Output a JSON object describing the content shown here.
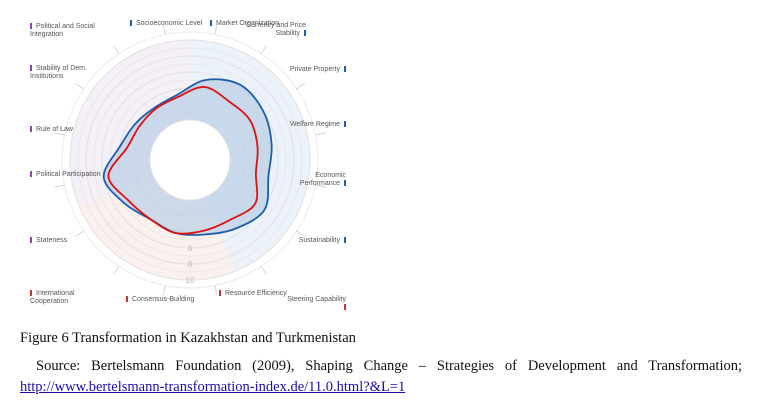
{
  "chart_data": {
    "type": "radar",
    "title": "Transformation in Kazakhstan and Turkmenistan",
    "axes": [
      {
        "label": "Socioeconomic Level",
        "color": "#1f5fa8"
      },
      {
        "label": "Market Organization",
        "color": "#1f5fa8"
      },
      {
        "label": "Currency and Price Stability",
        "color": "#1f5fa8"
      },
      {
        "label": "Private Property",
        "color": "#1f5fa8"
      },
      {
        "label": "Welfare Regime",
        "color": "#1f5fa8"
      },
      {
        "label": "Economic Performance",
        "color": "#1f5fa8"
      },
      {
        "label": "Sustainability",
        "color": "#1f5fa8"
      },
      {
        "label": "Steering Capability",
        "color": "#c0392b"
      },
      {
        "label": "Resource Efficiency",
        "color": "#c0392b"
      },
      {
        "label": "Consensus-Building",
        "color": "#c0392b"
      },
      {
        "label": "International Cooperation",
        "color": "#c0392b"
      },
      {
        "label": "Stateness",
        "color": "#8e44ad"
      },
      {
        "label": "Political Participation",
        "color": "#8e44ad"
      },
      {
        "label": "Rule of Law",
        "color": "#8e44ad"
      },
      {
        "label": "Stability of Dem. Institutions",
        "color": "#8e44ad"
      },
      {
        "label": "Political and Social Integration",
        "color": "#8e44ad"
      }
    ],
    "scale_ticks": [
      "6",
      "8",
      "10"
    ],
    "range": [
      0,
      10
    ],
    "series": [
      {
        "name": "Kazakhstan",
        "color": "#1f5fa8",
        "values": [
          5.2,
          6.3,
          6.0,
          5.4,
          5.0,
          6.2,
          5.3,
          4.5,
          4.3,
          3.9,
          4.8,
          6.0,
          3.9,
          3.2,
          2.9,
          3.3
        ]
      },
      {
        "name": "Turkmenistan",
        "color": "#dd1111",
        "values": [
          4.3,
          3.8,
          4.0,
          3.6,
          3.4,
          4.8,
          4.0,
          4.0,
          4.3,
          3.9,
          4.2,
          5.4,
          3.0,
          2.6,
          2.7,
          3.0
        ]
      }
    ]
  },
  "caption": "Figure 6 Transformation in Kazakhstan and Turkmenistan",
  "source": {
    "text": "Source: Bertelsmann Foundation (2009), Shaping Change – Strategies of Development and Transformation; ",
    "link": "http://www.bertelsmann-transformation-index.de/11.0.html?&L=1"
  }
}
